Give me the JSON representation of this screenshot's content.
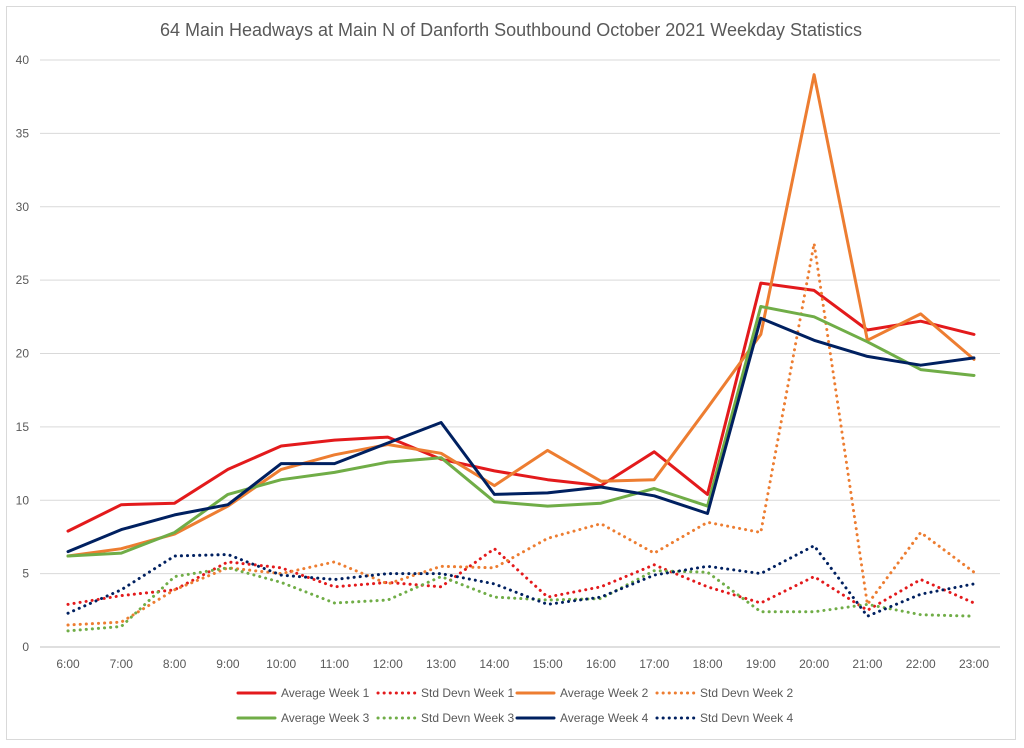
{
  "chart_data": {
    "type": "line",
    "title": "64 Main Headways at Main N of Danforth Southbound October 2021 Weekday Statistics",
    "xlabel": "",
    "ylabel": "",
    "categories": [
      "6:00",
      "7:00",
      "8:00",
      "9:00",
      "10:00",
      "11:00",
      "12:00",
      "13:00",
      "14:00",
      "15:00",
      "16:00",
      "17:00",
      "18:00",
      "19:00",
      "20:00",
      "21:00",
      "22:00",
      "23:00"
    ],
    "ylim": [
      0,
      40
    ],
    "yticks": [
      0,
      5,
      10,
      15,
      20,
      25,
      30,
      35,
      40
    ],
    "grid": true,
    "legend_position": "bottom",
    "series": [
      {
        "name": "Average Week 1",
        "color": "#e31a1c",
        "style": "solid",
        "values": [
          7.9,
          9.7,
          9.8,
          12.1,
          13.7,
          14.1,
          14.3,
          12.8,
          12.0,
          11.4,
          11.0,
          13.3,
          10.4,
          24.8,
          24.3,
          21.6,
          22.2,
          21.3
        ]
      },
      {
        "name": "Std Devn Week 1",
        "color": "#e31a1c",
        "style": "dotted",
        "values": [
          2.9,
          3.5,
          3.9,
          5.8,
          5.4,
          4.1,
          4.4,
          4.1,
          6.7,
          3.4,
          4.1,
          5.6,
          4.1,
          3.0,
          4.8,
          2.5,
          4.6,
          3.0
        ]
      },
      {
        "name": "Average Week 2",
        "color": "#ed7d31",
        "style": "solid",
        "values": [
          6.2,
          6.7,
          7.7,
          9.6,
          12.1,
          13.1,
          13.8,
          13.2,
          11.0,
          13.4,
          11.3,
          11.4,
          16.3,
          21.3,
          39.0,
          20.9,
          22.7,
          19.6
        ]
      },
      {
        "name": "Std Devn Week 2",
        "color": "#ed7d31",
        "style": "dotted",
        "values": [
          1.5,
          1.7,
          3.9,
          5.4,
          5.0,
          5.8,
          4.3,
          5.5,
          5.4,
          7.4,
          8.4,
          6.4,
          8.5,
          7.8,
          27.5,
          2.9,
          7.8,
          5.1
        ]
      },
      {
        "name": "Average Week 3",
        "color": "#70ad47",
        "style": "solid",
        "values": [
          6.2,
          6.4,
          7.8,
          10.4,
          11.4,
          11.9,
          12.6,
          12.9,
          9.9,
          9.6,
          9.8,
          10.8,
          9.6,
          23.2,
          22.5,
          20.8,
          18.9,
          18.5
        ]
      },
      {
        "name": "Std Devn Week 3",
        "color": "#70ad47",
        "style": "dotted",
        "values": [
          1.1,
          1.4,
          4.8,
          5.4,
          4.4,
          3.0,
          3.2,
          4.8,
          3.4,
          3.2,
          3.3,
          5.2,
          5.1,
          2.4,
          2.4,
          2.9,
          2.2,
          2.1
        ]
      },
      {
        "name": "Average Week 4",
        "color": "#002060",
        "style": "solid",
        "values": [
          6.5,
          8.0,
          9.0,
          9.7,
          12.5,
          12.5,
          13.9,
          15.3,
          10.4,
          10.5,
          10.9,
          10.3,
          9.1,
          22.4,
          20.9,
          19.8,
          19.2,
          19.7
        ]
      },
      {
        "name": "Std Devn Week 4",
        "color": "#002060",
        "style": "dotted",
        "values": [
          2.3,
          3.9,
          6.2,
          6.3,
          4.9,
          4.6,
          5.0,
          5.0,
          4.3,
          2.9,
          3.4,
          4.9,
          5.5,
          5.0,
          6.9,
          2.1,
          3.6,
          4.3
        ]
      }
    ]
  }
}
